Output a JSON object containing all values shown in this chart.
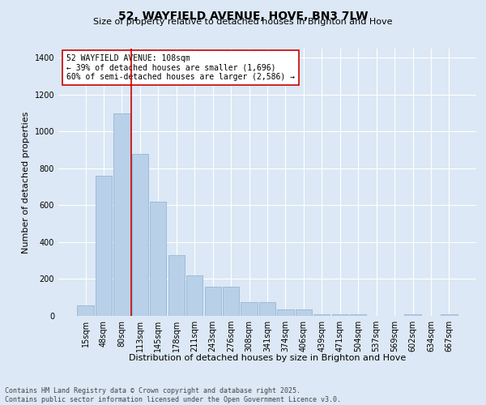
{
  "title": "52, WAYFIELD AVENUE, HOVE, BN3 7LW",
  "subtitle": "Size of property relative to detached houses in Brighton and Hove",
  "xlabel": "Distribution of detached houses by size in Brighton and Hove",
  "ylabel": "Number of detached properties",
  "categories": [
    "15sqm",
    "48sqm",
    "80sqm",
    "113sqm",
    "145sqm",
    "178sqm",
    "211sqm",
    "243sqm",
    "276sqm",
    "308sqm",
    "341sqm",
    "374sqm",
    "406sqm",
    "439sqm",
    "471sqm",
    "504sqm",
    "537sqm",
    "569sqm",
    "602sqm",
    "634sqm",
    "667sqm"
  ],
  "values": [
    55,
    760,
    1100,
    880,
    620,
    330,
    220,
    160,
    160,
    75,
    75,
    35,
    35,
    10,
    10,
    8,
    0,
    0,
    8,
    0,
    8
  ],
  "bar_color": "#b8d0e8",
  "bar_edge_color": "#8ab0d0",
  "red_line_x": 2.5,
  "property_name": "52 WAYFIELD AVENUE: 108sqm",
  "annotation_line1": "← 39% of detached houses are smaller (1,696)",
  "annotation_line2": "60% of semi-detached houses are larger (2,586) →",
  "annotation_box_color": "#ffffff",
  "annotation_border_color": "#cc0000",
  "ylim": [
    0,
    1450
  ],
  "background_color": "#dce8f5",
  "footer_line1": "Contains HM Land Registry data © Crown copyright and database right 2025.",
  "footer_line2": "Contains public sector information licensed under the Open Government Licence v3.0.",
  "title_fontsize": 10,
  "subtitle_fontsize": 8,
  "axis_label_fontsize": 8,
  "tick_fontsize": 7,
  "annotation_fontsize": 7,
  "footer_fontsize": 6
}
